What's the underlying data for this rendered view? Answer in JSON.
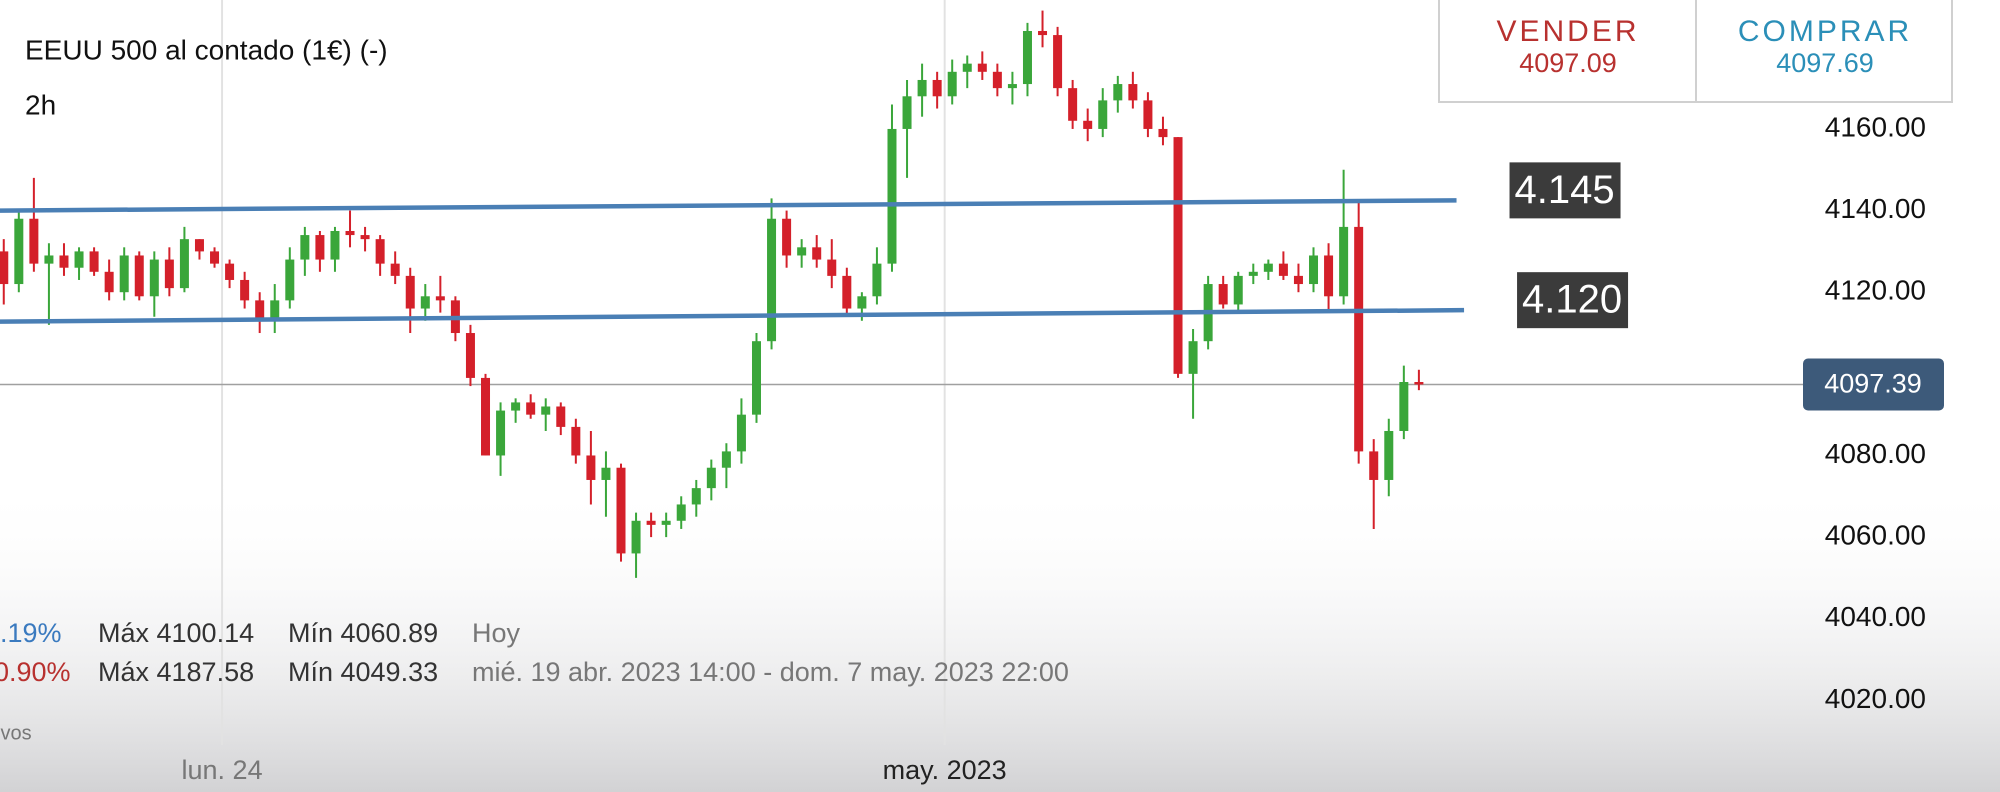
{
  "chart_data": {
    "type": "candlestick",
    "title": "EEUU 500 al contado (1€) (-)",
    "timeframe": "2h",
    "quote": {
      "sell_label": "VENDER",
      "sell": 4097.09,
      "buy_label": "COMPRAR",
      "buy": 4097.69
    },
    "up_color": "#3aa63a",
    "down_color": "#d4202a",
    "candles": [
      [
        4130,
        4133,
        4117,
        4122
      ],
      [
        4122,
        4140,
        4120,
        4138
      ],
      [
        4138,
        4148,
        4125,
        4127
      ],
      [
        4127,
        4132,
        4112,
        4129
      ],
      [
        4129,
        4132,
        4124,
        4126
      ],
      [
        4126,
        4131,
        4123,
        4130
      ],
      [
        4130,
        4131,
        4124,
        4125
      ],
      [
        4125,
        4128,
        4118,
        4120
      ],
      [
        4120,
        4131,
        4118,
        4129
      ],
      [
        4129,
        4130,
        4118,
        4119
      ],
      [
        4119,
        4130,
        4114,
        4128
      ],
      [
        4128,
        4131,
        4119,
        4121
      ],
      [
        4121,
        4136,
        4120,
        4133
      ],
      [
        4133,
        4133,
        4128,
        4130
      ],
      [
        4130,
        4131,
        4126,
        4127
      ],
      [
        4127,
        4128,
        4121,
        4123
      ],
      [
        4123,
        4125,
        4116,
        4118
      ],
      [
        4118,
        4120,
        4110,
        4113
      ],
      [
        4113,
        4122,
        4110,
        4118
      ],
      [
        4118,
        4131,
        4116,
        4128
      ],
      [
        4128,
        4136,
        4124,
        4134
      ],
      [
        4134,
        4135,
        4125,
        4128
      ],
      [
        4128,
        4136,
        4125,
        4135
      ],
      [
        4135,
        4140,
        4131,
        4134
      ],
      [
        4134,
        4136,
        4130,
        4133
      ],
      [
        4133,
        4134,
        4124,
        4127
      ],
      [
        4127,
        4130,
        4122,
        4124
      ],
      [
        4124,
        4126,
        4110,
        4116
      ],
      [
        4116,
        4122,
        4113,
        4119
      ],
      [
        4119,
        4124,
        4115,
        4118
      ],
      [
        4118,
        4119,
        4108,
        4110
      ],
      [
        4110,
        4112,
        4097,
        4099
      ],
      [
        4099,
        4100,
        4080,
        4080
      ],
      [
        4080,
        4093,
        4075,
        4091
      ],
      [
        4091,
        4094,
        4088,
        4093
      ],
      [
        4093,
        4095,
        4089,
        4090
      ],
      [
        4090,
        4094,
        4086,
        4092
      ],
      [
        4092,
        4093,
        4085,
        4087
      ],
      [
        4087,
        4089,
        4078,
        4080
      ],
      [
        4080,
        4086,
        4068,
        4074
      ],
      [
        4074,
        4081,
        4065,
        4077
      ],
      [
        4077,
        4078,
        4054,
        4056
      ],
      [
        4056,
        4066,
        4050,
        4064
      ],
      [
        4064,
        4066,
        4060,
        4063
      ],
      [
        4063,
        4066,
        4060,
        4064
      ],
      [
        4064,
        4070,
        4062,
        4068
      ],
      [
        4068,
        4074,
        4065,
        4072
      ],
      [
        4072,
        4079,
        4069,
        4077
      ],
      [
        4077,
        4083,
        4072,
        4081
      ],
      [
        4081,
        4094,
        4078,
        4090
      ],
      [
        4090,
        4110,
        4088,
        4108
      ],
      [
        4108,
        4143,
        4106,
        4138
      ],
      [
        4138,
        4140,
        4126,
        4129
      ],
      [
        4129,
        4133,
        4126,
        4131
      ],
      [
        4131,
        4134,
        4126,
        4128
      ],
      [
        4128,
        4133,
        4121,
        4124
      ],
      [
        4124,
        4126,
        4114,
        4116
      ],
      [
        4116,
        4120,
        4113,
        4119
      ],
      [
        4119,
        4131,
        4117,
        4127
      ],
      [
        4127,
        4166,
        4125,
        4160
      ],
      [
        4160,
        4172,
        4148,
        4168
      ],
      [
        4168,
        4176,
        4163,
        4172
      ],
      [
        4172,
        4174,
        4165,
        4168
      ],
      [
        4168,
        4177,
        4166,
        4174
      ],
      [
        4174,
        4178,
        4170,
        4176
      ],
      [
        4176,
        4179,
        4172,
        4174
      ],
      [
        4174,
        4176,
        4168,
        4170
      ],
      [
        4170,
        4174,
        4166,
        4171
      ],
      [
        4171,
        4186,
        4168,
        4184
      ],
      [
        4184,
        4189,
        4180,
        4183
      ],
      [
        4183,
        4185,
        4168,
        4170
      ],
      [
        4170,
        4172,
        4160,
        4162
      ],
      [
        4162,
        4165,
        4157,
        4160
      ],
      [
        4160,
        4170,
        4158,
        4167
      ],
      [
        4167,
        4173,
        4164,
        4171
      ],
      [
        4171,
        4174,
        4165,
        4167
      ],
      [
        4167,
        4169,
        4158,
        4160
      ],
      [
        4160,
        4163,
        4156,
        4158
      ],
      [
        4158,
        4158,
        4099,
        4100
      ],
      [
        4100,
        4111,
        4089,
        4108
      ],
      [
        4108,
        4124,
        4106,
        4122
      ],
      [
        4122,
        4124,
        4116,
        4117
      ],
      [
        4117,
        4125,
        4115,
        4124
      ],
      [
        4124,
        4127,
        4122,
        4125
      ],
      [
        4125,
        4128,
        4123,
        4127
      ],
      [
        4127,
        4130,
        4123,
        4124
      ],
      [
        4124,
        4127,
        4120,
        4122
      ],
      [
        4122,
        4131,
        4120,
        4129
      ],
      [
        4129,
        4132,
        4115,
        4119
      ],
      [
        4119,
        4150,
        4117,
        4136
      ],
      [
        4136,
        4142,
        4078,
        4081
      ],
      [
        4081,
        4084,
        4062,
        4074
      ],
      [
        4074,
        4089,
        4070,
        4086
      ],
      [
        4086,
        4102,
        4084,
        4098
      ],
      [
        4098,
        4101,
        4096,
        4097.39
      ]
    ],
    "xlim": [
      -0.25,
      132.6
    ],
    "ylim": [
      4000,
      4190
    ],
    "xticks": [
      {
        "value": 14.5,
        "label": "lun. 24"
      },
      {
        "value": 62.5,
        "label": "may. 2023"
      }
    ],
    "yticks": [
      {
        "value": 4020,
        "label": "4020.00"
      },
      {
        "value": 4040,
        "label": "4040.00"
      },
      {
        "value": 4060,
        "label": "4060.00"
      },
      {
        "value": 4080,
        "label": "4080.00"
      },
      {
        "value": 4120,
        "label": "4120.00"
      },
      {
        "value": 4140,
        "label": "4140.00"
      },
      {
        "value": 4160,
        "label": "4160.00"
      }
    ],
    "current_price": 4097.39,
    "trendlines": [
      {
        "label": "4.145",
        "x": [
          -0.25,
          96.5
        ],
        "y": [
          4140,
          4142.5
        ],
        "color": "#4a7fb5"
      },
      {
        "label": "4.120",
        "x": [
          -0.25,
          97
        ],
        "y": [
          4112.8,
          4115.6
        ],
        "color": "#4a7fb5"
      }
    ],
    "stats": [
      [
        ".19%",
        "Máx 4100.14",
        "Mín 4060.89",
        "Hoy"
      ],
      [
        "0.90%",
        "Máx 4187.58",
        "Mín 4049.33",
        "mié. 19 abr. 2023 14:00 - dom. 7 may. 2023 22:00"
      ]
    ],
    "footnote": "ivos"
  }
}
